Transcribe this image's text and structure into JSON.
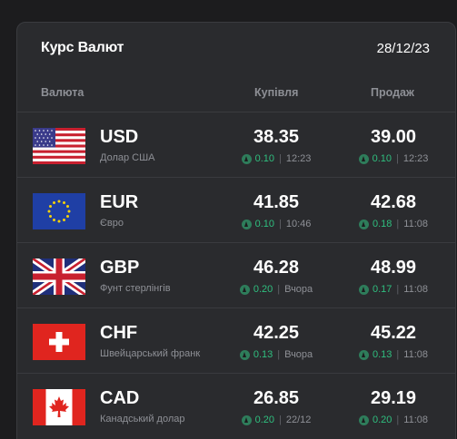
{
  "header": {
    "title": "Курс Валют",
    "date": "28/12/23"
  },
  "columns": {
    "currency": "Валюта",
    "buy": "Купівля",
    "sell": "Продаж"
  },
  "colors": {
    "delta_up": "#2fbf7f",
    "icon_bg": "#2e7d5b",
    "card_bg": "#2a2b2e"
  },
  "rows": [
    {
      "flag_icon": "us-flag-icon",
      "code": "USD",
      "name": "Долар США",
      "buy": {
        "rate": "38.35",
        "delta": "0.10",
        "time": "12:23"
      },
      "sell": {
        "rate": "39.00",
        "delta": "0.10",
        "time": "12:23"
      }
    },
    {
      "flag_icon": "eu-flag-icon",
      "code": "EUR",
      "name": "Євро",
      "buy": {
        "rate": "41.85",
        "delta": "0.10",
        "time": "10:46"
      },
      "sell": {
        "rate": "42.68",
        "delta": "0.18",
        "time": "11:08"
      }
    },
    {
      "flag_icon": "uk-flag-icon",
      "code": "GBP",
      "name": "Фунт стерлінгів",
      "buy": {
        "rate": "46.28",
        "delta": "0.20",
        "time": "Вчора"
      },
      "sell": {
        "rate": "48.99",
        "delta": "0.17",
        "time": "11:08"
      }
    },
    {
      "flag_icon": "ch-flag-icon",
      "code": "CHF",
      "name": "Швейцарський франк",
      "buy": {
        "rate": "42.25",
        "delta": "0.13",
        "time": "Вчора"
      },
      "sell": {
        "rate": "45.22",
        "delta": "0.13",
        "time": "11:08"
      }
    },
    {
      "flag_icon": "ca-flag-icon",
      "code": "CAD",
      "name": "Канадський долар",
      "buy": {
        "rate": "26.85",
        "delta": "0.20",
        "time": "22/12"
      },
      "sell": {
        "rate": "29.19",
        "delta": "0.20",
        "time": "11:08"
      }
    }
  ]
}
